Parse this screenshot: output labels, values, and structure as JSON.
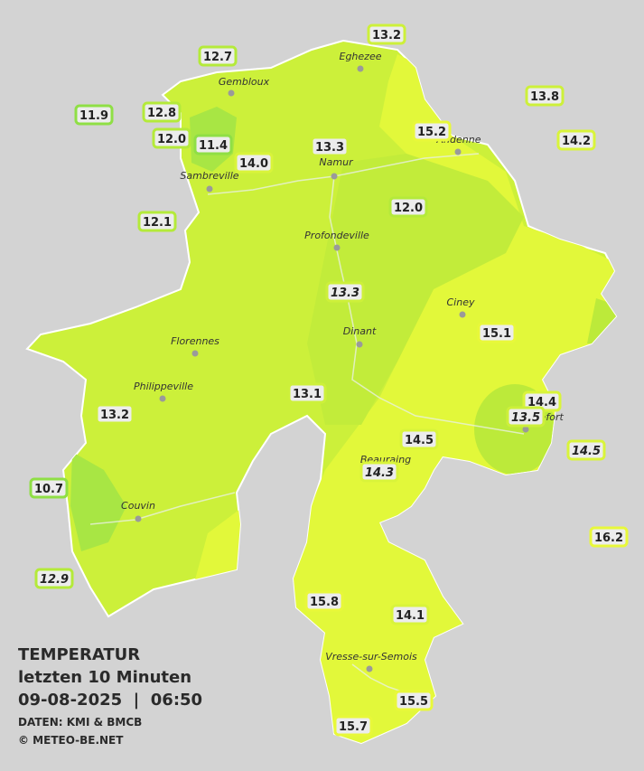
{
  "legend": {
    "title": "TEMPERATUR",
    "subtitle": "letzten 10 Minuten",
    "timestamp": "09-08-2025  |  06:50",
    "source": "DATEN: KMI & BMCB",
    "copyright": "© METEO-BE.NET"
  },
  "places": [
    "Eghezee",
    "Gembloux",
    "Andenne",
    "Namur",
    "Sambreville",
    "Profondeville",
    "Ciney",
    "Dinant",
    "Florennes",
    "Philippeville",
    "Rochefort",
    "Beauraing",
    "Couvin",
    "Vresse-sur-Semois"
  ],
  "readings": [
    "13.2",
    "12.7",
    "13.8",
    "11.9",
    "12.8",
    "15.2",
    "14.2",
    "12.0",
    "11.4",
    "13.3",
    "14.0",
    "12.0",
    "12.1",
    "13.3",
    "15.1",
    "13.1",
    "14.4",
    "13.2",
    "13.5",
    "14.5",
    "14.5",
    "14.3",
    "10.7",
    "16.2",
    "12.9",
    "15.8",
    "14.1",
    "15.5",
    "15.7"
  ]
}
